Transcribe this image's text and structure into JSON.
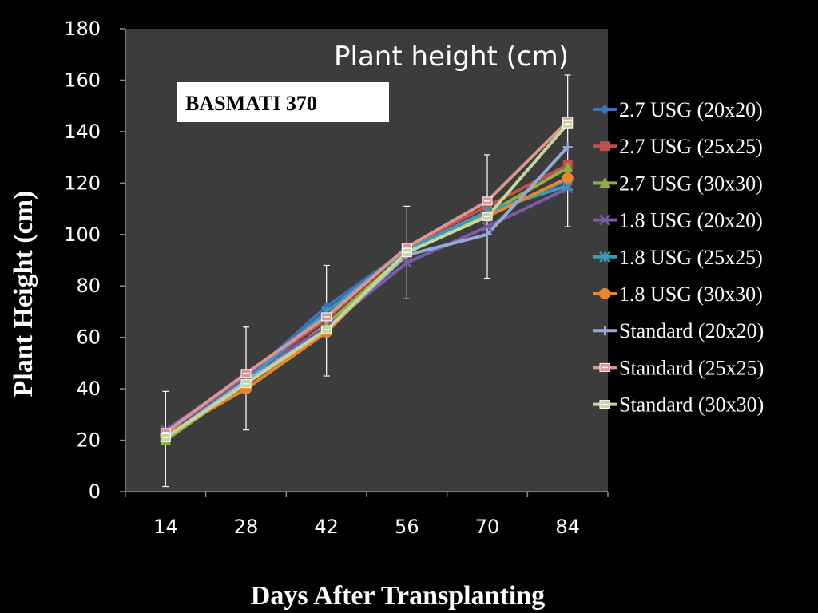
{
  "chart_data": {
    "type": "line",
    "title": "Plant height (cm)",
    "annotation": "BASMATI 370",
    "xlabel": "Days After Transplanting",
    "ylabel": "Plant Height (cm)",
    "x": [
      14,
      28,
      42,
      56,
      70,
      84
    ],
    "ylim": [
      0,
      180
    ],
    "yticks": [
      0,
      20,
      40,
      60,
      80,
      100,
      120,
      140,
      160,
      180
    ],
    "grid": false,
    "legend": "right",
    "plot_background": "#3c3c3c",
    "series": [
      {
        "name": "2.7 USG (20x20)",
        "color": "#3d71b8",
        "marker": "diamond",
        "values": [
          21,
          44,
          72,
          94,
          108,
          121
        ]
      },
      {
        "name": "2.7 USG (25x25)",
        "color": "#c0504d",
        "marker": "square",
        "values": [
          23,
          45,
          67,
          95,
          111,
          127
        ]
      },
      {
        "name": "2.7 USG (30x30)",
        "color": "#8fb044",
        "marker": "triangle",
        "values": [
          20,
          42,
          65,
          93,
          108,
          126
        ]
      },
      {
        "name": "1.8 USG (20x20)",
        "color": "#7b5aa6",
        "marker": "x",
        "values": [
          24,
          45,
          64,
          89,
          103,
          118
        ]
      },
      {
        "name": "1.8 USG (25x25)",
        "color": "#3a9bb5",
        "marker": "star",
        "values": [
          21,
          43,
          70,
          94,
          109,
          119
        ]
      },
      {
        "name": "1.8 USG (30x30)",
        "color": "#e6862f",
        "marker": "circle",
        "values": [
          22,
          40,
          62,
          93,
          107,
          122
        ]
      },
      {
        "name": "Standard (20x20)",
        "color": "#94a9d4",
        "marker": "plus",
        "values": [
          21,
          43,
          63,
          92,
          100,
          134
        ]
      },
      {
        "name": "Standard (25x25)",
        "color": "#d99694",
        "marker": "dash-box",
        "values": [
          23,
          46,
          68,
          95,
          113,
          144
        ]
      },
      {
        "name": "Standard (30x30)",
        "color": "#c3d69b",
        "marker": "dash-box",
        "values": [
          21,
          42,
          63,
          93,
          107,
          143
        ]
      }
    ],
    "error_bars": [
      {
        "x": 14,
        "low": 2,
        "high": 39
      },
      {
        "x": 28,
        "low": 24,
        "high": 64
      },
      {
        "x": 42,
        "low": 45,
        "high": 88
      },
      {
        "x": 56,
        "low": 75,
        "high": 111
      },
      {
        "x": 70,
        "low": 83,
        "high": 131
      },
      {
        "x": 84,
        "low": 103,
        "high": 162
      }
    ]
  }
}
